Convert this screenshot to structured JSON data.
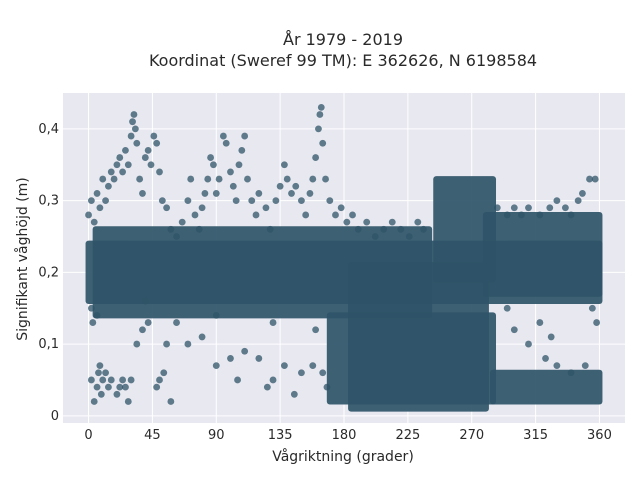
{
  "chart_data": {
    "type": "scatter",
    "title": "År 1979 - 2019",
    "subtitle": "Koordinat (Sweref 99 TM): E 362626, N 6198584",
    "xlabel": "Vågriktning (grader)",
    "ylabel": "Signifikant våghöjd (m)",
    "xlim": [
      -18,
      378
    ],
    "ylim": [
      -0.01,
      0.45
    ],
    "x_ticks": [
      0,
      45,
      90,
      135,
      180,
      225,
      270,
      315,
      360
    ],
    "x_tick_labels": [
      "0",
      "45",
      "90",
      "135",
      "180",
      "225",
      "270",
      "315",
      "360"
    ],
    "y_ticks": [
      0,
      0.1,
      0.2,
      0.3,
      0.4
    ],
    "y_tick_labels": [
      "0",
      "0,1",
      "0,2",
      "0,3",
      "0,4"
    ],
    "grid": true,
    "legend": "none",
    "marker_color": "#2f5468",
    "background_color": "#e8e8f0",
    "dense_bands": [
      {
        "x": [
          0,
          360
        ],
        "y": [
          0.16,
          0.24
        ]
      },
      {
        "x": [
          5,
          240
        ],
        "y": [
          0.14,
          0.26
        ]
      },
      {
        "x": [
          170,
          285
        ],
        "y": [
          0.02,
          0.14
        ]
      },
      {
        "x": [
          185,
          280
        ],
        "y": [
          0.01,
          0.21
        ]
      },
      {
        "x": [
          245,
          285
        ],
        "y": [
          0.19,
          0.33
        ]
      },
      {
        "x": [
          280,
          360
        ],
        "y": [
          0.17,
          0.28
        ]
      },
      {
        "x": [
          285,
          360
        ],
        "y": [
          0.02,
          0.06
        ]
      }
    ],
    "points": [
      [
        0,
        0.28
      ],
      [
        2,
        0.3
      ],
      [
        4,
        0.27
      ],
      [
        6,
        0.31
      ],
      [
        8,
        0.29
      ],
      [
        10,
        0.33
      ],
      [
        12,
        0.3
      ],
      [
        14,
        0.32
      ],
      [
        16,
        0.34
      ],
      [
        18,
        0.33
      ],
      [
        20,
        0.35
      ],
      [
        22,
        0.36
      ],
      [
        24,
        0.34
      ],
      [
        26,
        0.37
      ],
      [
        28,
        0.35
      ],
      [
        30,
        0.39
      ],
      [
        31,
        0.41
      ],
      [
        32,
        0.42
      ],
      [
        33,
        0.4
      ],
      [
        34,
        0.38
      ],
      [
        36,
        0.33
      ],
      [
        38,
        0.31
      ],
      [
        40,
        0.36
      ],
      [
        42,
        0.37
      ],
      [
        44,
        0.35
      ],
      [
        46,
        0.39
      ],
      [
        48,
        0.38
      ],
      [
        50,
        0.34
      ],
      [
        52,
        0.3
      ],
      [
        55,
        0.29
      ],
      [
        58,
        0.26
      ],
      [
        62,
        0.25
      ],
      [
        66,
        0.27
      ],
      [
        70,
        0.3
      ],
      [
        72,
        0.33
      ],
      [
        75,
        0.28
      ],
      [
        78,
        0.26
      ],
      [
        80,
        0.29
      ],
      [
        82,
        0.31
      ],
      [
        84,
        0.33
      ],
      [
        86,
        0.36
      ],
      [
        88,
        0.35
      ],
      [
        90,
        0.31
      ],
      [
        92,
        0.33
      ],
      [
        95,
        0.39
      ],
      [
        97,
        0.38
      ],
      [
        100,
        0.34
      ],
      [
        102,
        0.32
      ],
      [
        104,
        0.3
      ],
      [
        106,
        0.35
      ],
      [
        108,
        0.37
      ],
      [
        110,
        0.39
      ],
      [
        112,
        0.33
      ],
      [
        115,
        0.3
      ],
      [
        118,
        0.28
      ],
      [
        120,
        0.31
      ],
      [
        125,
        0.29
      ],
      [
        128,
        0.26
      ],
      [
        132,
        0.3
      ],
      [
        135,
        0.32
      ],
      [
        138,
        0.35
      ],
      [
        140,
        0.33
      ],
      [
        143,
        0.31
      ],
      [
        146,
        0.32
      ],
      [
        150,
        0.3
      ],
      [
        153,
        0.28
      ],
      [
        156,
        0.31
      ],
      [
        158,
        0.33
      ],
      [
        160,
        0.36
      ],
      [
        162,
        0.4
      ],
      [
        163,
        0.42
      ],
      [
        164,
        0.43
      ],
      [
        165,
        0.38
      ],
      [
        167,
        0.33
      ],
      [
        170,
        0.3
      ],
      [
        174,
        0.28
      ],
      [
        178,
        0.29
      ],
      [
        182,
        0.27
      ],
      [
        186,
        0.28
      ],
      [
        190,
        0.26
      ],
      [
        196,
        0.27
      ],
      [
        202,
        0.25
      ],
      [
        208,
        0.26
      ],
      [
        214,
        0.27
      ],
      [
        220,
        0.26
      ],
      [
        226,
        0.25
      ],
      [
        232,
        0.27
      ],
      [
        236,
        0.26
      ],
      [
        288,
        0.29
      ],
      [
        295,
        0.28
      ],
      [
        300,
        0.29
      ],
      [
        305,
        0.28
      ],
      [
        310,
        0.29
      ],
      [
        318,
        0.28
      ],
      [
        325,
        0.29
      ],
      [
        330,
        0.3
      ],
      [
        336,
        0.29
      ],
      [
        340,
        0.28
      ],
      [
        345,
        0.3
      ],
      [
        348,
        0.31
      ],
      [
        353,
        0.33
      ],
      [
        357,
        0.33
      ],
      [
        2,
        0.05
      ],
      [
        4,
        0.02
      ],
      [
        6,
        0.04
      ],
      [
        7,
        0.06
      ],
      [
        8,
        0.07
      ],
      [
        9,
        0.03
      ],
      [
        10,
        0.05
      ],
      [
        12,
        0.06
      ],
      [
        14,
        0.04
      ],
      [
        16,
        0.05
      ],
      [
        20,
        0.03
      ],
      [
        22,
        0.04
      ],
      [
        24,
        0.05
      ],
      [
        26,
        0.04
      ],
      [
        28,
        0.02
      ],
      [
        30,
        0.05
      ],
      [
        34,
        0.1
      ],
      [
        38,
        0.12
      ],
      [
        42,
        0.13
      ],
      [
        48,
        0.04
      ],
      [
        50,
        0.05
      ],
      [
        53,
        0.06
      ],
      [
        55,
        0.1
      ],
      [
        58,
        0.02
      ],
      [
        62,
        0.13
      ],
      [
        70,
        0.1
      ],
      [
        80,
        0.11
      ],
      [
        90,
        0.07
      ],
      [
        100,
        0.08
      ],
      [
        105,
        0.05
      ],
      [
        110,
        0.09
      ],
      [
        120,
        0.08
      ],
      [
        126,
        0.04
      ],
      [
        130,
        0.05
      ],
      [
        138,
        0.07
      ],
      [
        145,
        0.03
      ],
      [
        150,
        0.06
      ],
      [
        158,
        0.07
      ],
      [
        165,
        0.06
      ],
      [
        168,
        0.04
      ],
      [
        2,
        0.15
      ],
      [
        3,
        0.13
      ],
      [
        6,
        0.14
      ],
      [
        40,
        0.16
      ],
      [
        90,
        0.14
      ],
      [
        130,
        0.13
      ],
      [
        160,
        0.12
      ],
      [
        310,
        0.1
      ],
      [
        318,
        0.13
      ],
      [
        322,
        0.08
      ],
      [
        326,
        0.11
      ],
      [
        330,
        0.07
      ],
      [
        340,
        0.06
      ],
      [
        350,
        0.07
      ],
      [
        355,
        0.15
      ],
      [
        358,
        0.13
      ],
      [
        295,
        0.15
      ],
      [
        300,
        0.12
      ]
    ]
  }
}
